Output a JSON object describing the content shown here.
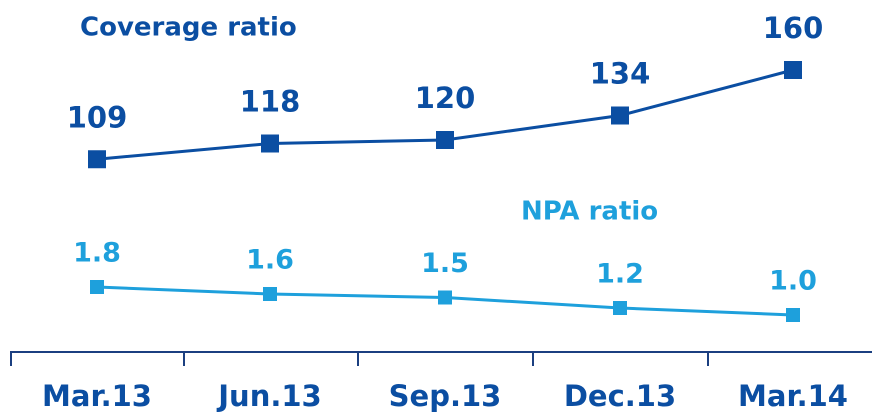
{
  "chart_data": {
    "type": "line",
    "categories": [
      "Mar.13",
      "Jun.13",
      "Sep.13",
      "Dec.13",
      "Mar.14"
    ],
    "series": [
      {
        "name": "Coverage ratio",
        "color": "#0b4ea2",
        "values": [
          109,
          118,
          120,
          134,
          160
        ]
      },
      {
        "name": "NPA ratio",
        "color": "#1ea0dc",
        "axis": "y2",
        "values": [
          1.8,
          1.6,
          1.5,
          1.2,
          1.0
        ],
        "value_labels": [
          "1.8",
          "1.6",
          "1.5",
          "1.2",
          "1.0"
        ]
      }
    ],
    "ylim": [
      0,
      200
    ],
    "y2lim": [
      0,
      10
    ]
  }
}
